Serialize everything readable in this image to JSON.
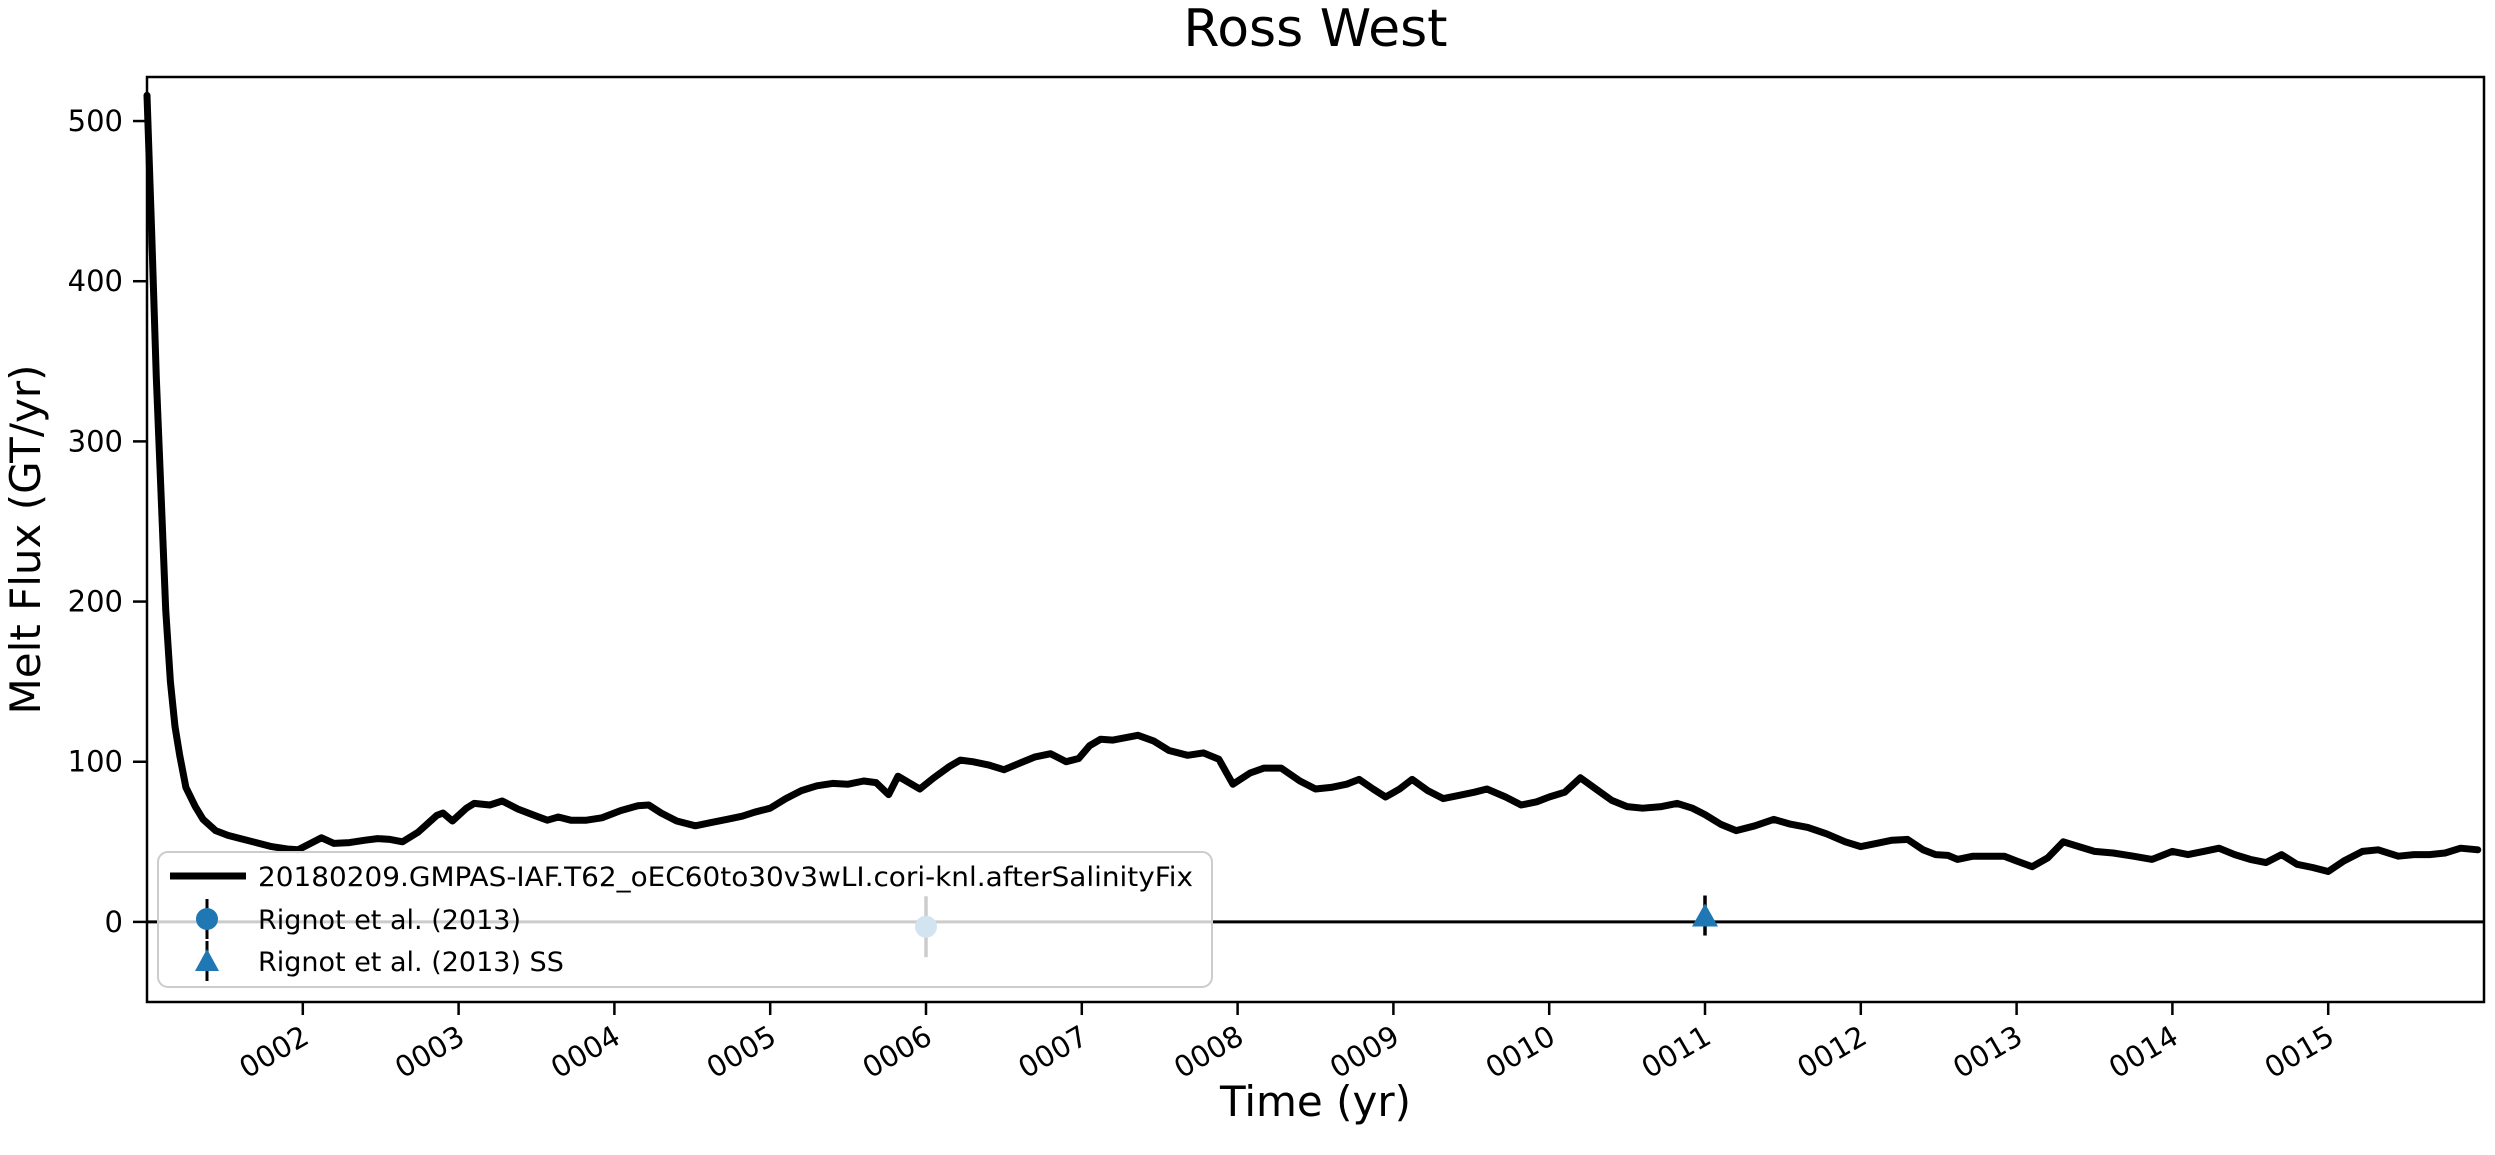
{
  "figure": {
    "background": "#ffffff"
  },
  "chart_data": {
    "type": "line",
    "title": "Ross West",
    "xlabel": "Time (yr)",
    "ylabel": "Melt Flux (GT/yr)",
    "xlim": [
      1.0,
      16.0
    ],
    "ylim": [
      -50,
      527.5
    ],
    "grid": false,
    "axhline_y": 0,
    "xtick_values": [
      2,
      3,
      4,
      5,
      6,
      7,
      8,
      9,
      10,
      11,
      12,
      13,
      14,
      15
    ],
    "xtick_labels": [
      "0002",
      "0003",
      "0004",
      "0005",
      "0006",
      "0007",
      "0008",
      "0009",
      "0010",
      "0011",
      "0012",
      "0013",
      "0014",
      "0015"
    ],
    "ytick_values": [
      0,
      100,
      200,
      300,
      400,
      500
    ],
    "ytick_labels": [
      "0",
      "100",
      "200",
      "300",
      "400",
      "500"
    ],
    "series": [
      {
        "name": "20180209.GMPAS-IAF.T62_oEC60to30v3wLI.cori-knl.afterSalinityFix",
        "color": "#000000",
        "linewidth": 7,
        "points": [
          [
            1.0,
            516
          ],
          [
            1.03,
            430
          ],
          [
            1.06,
            340
          ],
          [
            1.09,
            268
          ],
          [
            1.12,
            195
          ],
          [
            1.15,
            150
          ],
          [
            1.18,
            122
          ],
          [
            1.21,
            104
          ],
          [
            1.25,
            84
          ],
          [
            1.31,
            72
          ],
          [
            1.36,
            64
          ],
          [
            1.44,
            57
          ],
          [
            1.52,
            54
          ],
          [
            1.6,
            52
          ],
          [
            1.7,
            49.5
          ],
          [
            1.8,
            47
          ],
          [
            1.9,
            45.5
          ],
          [
            1.97,
            45
          ],
          [
            2.05,
            49
          ],
          [
            2.12,
            52.5
          ],
          [
            2.2,
            49
          ],
          [
            2.3,
            49.5
          ],
          [
            2.4,
            51
          ],
          [
            2.48,
            52
          ],
          [
            2.56,
            51.5
          ],
          [
            2.64,
            50
          ],
          [
            2.74,
            56
          ],
          [
            2.86,
            66.5
          ],
          [
            2.9,
            68
          ],
          [
            2.96,
            63
          ],
          [
            3.05,
            71
          ],
          [
            3.1,
            74
          ],
          [
            3.2,
            73
          ],
          [
            3.28,
            75.5
          ],
          [
            3.38,
            70.5
          ],
          [
            3.5,
            66
          ],
          [
            3.57,
            63.5
          ],
          [
            3.64,
            65.5
          ],
          [
            3.72,
            63.5
          ],
          [
            3.82,
            63.5
          ],
          [
            3.92,
            65
          ],
          [
            4.04,
            69.5
          ],
          [
            4.15,
            72.5
          ],
          [
            4.22,
            73
          ],
          [
            4.3,
            68
          ],
          [
            4.4,
            63
          ],
          [
            4.52,
            60
          ],
          [
            4.62,
            62
          ],
          [
            4.72,
            64
          ],
          [
            4.82,
            66
          ],
          [
            4.9,
            68.5
          ],
          [
            5.0,
            71
          ],
          [
            5.1,
            77
          ],
          [
            5.2,
            82
          ],
          [
            5.3,
            85
          ],
          [
            5.4,
            86.5
          ],
          [
            5.5,
            86
          ],
          [
            5.6,
            88
          ],
          [
            5.68,
            87
          ],
          [
            5.76,
            79.5
          ],
          [
            5.82,
            91
          ],
          [
            5.89,
            87
          ],
          [
            5.96,
            83
          ],
          [
            6.05,
            90
          ],
          [
            6.15,
            97
          ],
          [
            6.22,
            101
          ],
          [
            6.3,
            100
          ],
          [
            6.4,
            98
          ],
          [
            6.5,
            95
          ],
          [
            6.6,
            99
          ],
          [
            6.7,
            103
          ],
          [
            6.8,
            105
          ],
          [
            6.9,
            100
          ],
          [
            6.98,
            102
          ],
          [
            7.05,
            110
          ],
          [
            7.12,
            114
          ],
          [
            7.2,
            113.5
          ],
          [
            7.28,
            115
          ],
          [
            7.36,
            116.5
          ],
          [
            7.46,
            113
          ],
          [
            7.56,
            107
          ],
          [
            7.68,
            104
          ],
          [
            7.78,
            105.5
          ],
          [
            7.88,
            101.5
          ],
          [
            7.97,
            86
          ],
          [
            8.08,
            93
          ],
          [
            8.17,
            96
          ],
          [
            8.28,
            96
          ],
          [
            8.4,
            88
          ],
          [
            8.5,
            83
          ],
          [
            8.6,
            84
          ],
          [
            8.7,
            86
          ],
          [
            8.78,
            89
          ],
          [
            8.87,
            83
          ],
          [
            8.95,
            78
          ],
          [
            9.04,
            83
          ],
          [
            9.12,
            89
          ],
          [
            9.22,
            82
          ],
          [
            9.32,
            77
          ],
          [
            9.42,
            79
          ],
          [
            9.52,
            81
          ],
          [
            9.6,
            83
          ],
          [
            9.72,
            78
          ],
          [
            9.82,
            73
          ],
          [
            9.92,
            75
          ],
          [
            10.0,
            78
          ],
          [
            10.1,
            81
          ],
          [
            10.2,
            90
          ],
          [
            10.3,
            83
          ],
          [
            10.4,
            76
          ],
          [
            10.5,
            72
          ],
          [
            10.6,
            71
          ],
          [
            10.72,
            72
          ],
          [
            10.82,
            74
          ],
          [
            10.92,
            71
          ],
          [
            11.0,
            67
          ],
          [
            11.1,
            61
          ],
          [
            11.2,
            57
          ],
          [
            11.32,
            60
          ],
          [
            11.44,
            64
          ],
          [
            11.55,
            61
          ],
          [
            11.66,
            59
          ],
          [
            11.78,
            55
          ],
          [
            11.9,
            50
          ],
          [
            12.0,
            47
          ],
          [
            12.1,
            49
          ],
          [
            12.2,
            51
          ],
          [
            12.3,
            51.5
          ],
          [
            12.4,
            45
          ],
          [
            12.48,
            42
          ],
          [
            12.56,
            41.5
          ],
          [
            12.62,
            39
          ],
          [
            12.72,
            41
          ],
          [
            12.82,
            41
          ],
          [
            12.92,
            41
          ],
          [
            13.0,
            38
          ],
          [
            13.1,
            34.5
          ],
          [
            13.2,
            40
          ],
          [
            13.3,
            50
          ],
          [
            13.4,
            47
          ],
          [
            13.5,
            44
          ],
          [
            13.62,
            43
          ],
          [
            13.75,
            41
          ],
          [
            13.87,
            39
          ],
          [
            14.0,
            44
          ],
          [
            14.1,
            42
          ],
          [
            14.2,
            44
          ],
          [
            14.3,
            46
          ],
          [
            14.4,
            42
          ],
          [
            14.5,
            39
          ],
          [
            14.6,
            37
          ],
          [
            14.7,
            42
          ],
          [
            14.8,
            36
          ],
          [
            14.9,
            34
          ],
          [
            15.0,
            31.5
          ],
          [
            15.1,
            38
          ],
          [
            15.22,
            44
          ],
          [
            15.32,
            45
          ],
          [
            15.45,
            41
          ],
          [
            15.55,
            42
          ],
          [
            15.65,
            42
          ],
          [
            15.75,
            43
          ],
          [
            15.85,
            46
          ],
          [
            15.96,
            45
          ]
        ]
      }
    ],
    "errorbar_points": [
      {
        "name": "Rignot et al. (2013)",
        "marker": "circle",
        "x": 6.0,
        "y": -3,
        "yerr": 19,
        "color": "#1f77b4"
      },
      {
        "name": "Rignot et al. (2013) SS",
        "marker": "triangle",
        "x": 11.0,
        "y": 4,
        "yerr": 12.5,
        "color": "#1f77b4"
      }
    ],
    "legend": {
      "position": "lower left",
      "border_color": "#cccccc",
      "background": "rgba(255,255,255,0.8)",
      "entries": [
        {
          "marker": "line",
          "color": "#000000",
          "label": "20180209.GMPAS-IAF.T62_oEC60to30v3wLI.cori-knl.afterSalinityFix"
        },
        {
          "marker": "circle",
          "color": "#1f77b4",
          "label": "Rignot et al. (2013)"
        },
        {
          "marker": "triangle",
          "color": "#1f77b4",
          "label": "Rignot et al. (2013) SS"
        }
      ]
    }
  }
}
